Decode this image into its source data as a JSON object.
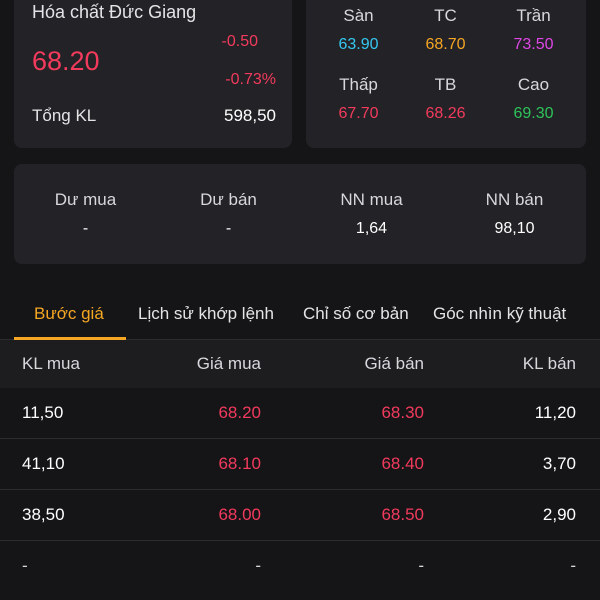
{
  "stock": {
    "name": "Hóa chất Đức Giang",
    "price": "68.20",
    "change": "-0.50",
    "change_pct": "-0.73%",
    "volume_label": "Tổng KL",
    "volume_value": "598,50"
  },
  "price_levels": [
    {
      "label": "Sàn",
      "value": "63.90",
      "color": "#35c8f0"
    },
    {
      "label": "TC",
      "value": "68.70",
      "color": "#f5a623"
    },
    {
      "label": "Trần",
      "value": "73.50",
      "color": "#e046e6"
    },
    {
      "label": "Thấp",
      "value": "67.70",
      "color": "#f23a5c"
    },
    {
      "label": "TB",
      "value": "68.26",
      "color": "#f23a5c"
    },
    {
      "label": "Cao",
      "value": "69.30",
      "color": "#2ec35a"
    }
  ],
  "flow": [
    {
      "label": "Dư mua",
      "value": "-"
    },
    {
      "label": "Dư bán",
      "value": "-"
    },
    {
      "label": "NN mua",
      "value": "1,64"
    },
    {
      "label": "NN bán",
      "value": "98,10"
    }
  ],
  "tabs": [
    "Bước giá",
    "Lịch sử khớp lệnh",
    "Chỉ số cơ bản",
    "Góc nhìn kỹ thuật"
  ],
  "active_tab": "Bước giá",
  "table": {
    "headers": [
      "KL mua",
      "Giá mua",
      "Giá bán",
      "KL bán"
    ],
    "rows": [
      [
        "11,50",
        "68.20",
        "68.30",
        "11,20"
      ],
      [
        "41,10",
        "68.10",
        "68.40",
        "3,70"
      ],
      [
        "38,50",
        "68.00",
        "68.50",
        "2,90"
      ],
      [
        "-",
        "-",
        "-",
        "-"
      ]
    ]
  },
  "colors": {
    "background": "#151518",
    "card": "#232327",
    "down": "#f23a5c",
    "accent": "#f5a623"
  }
}
